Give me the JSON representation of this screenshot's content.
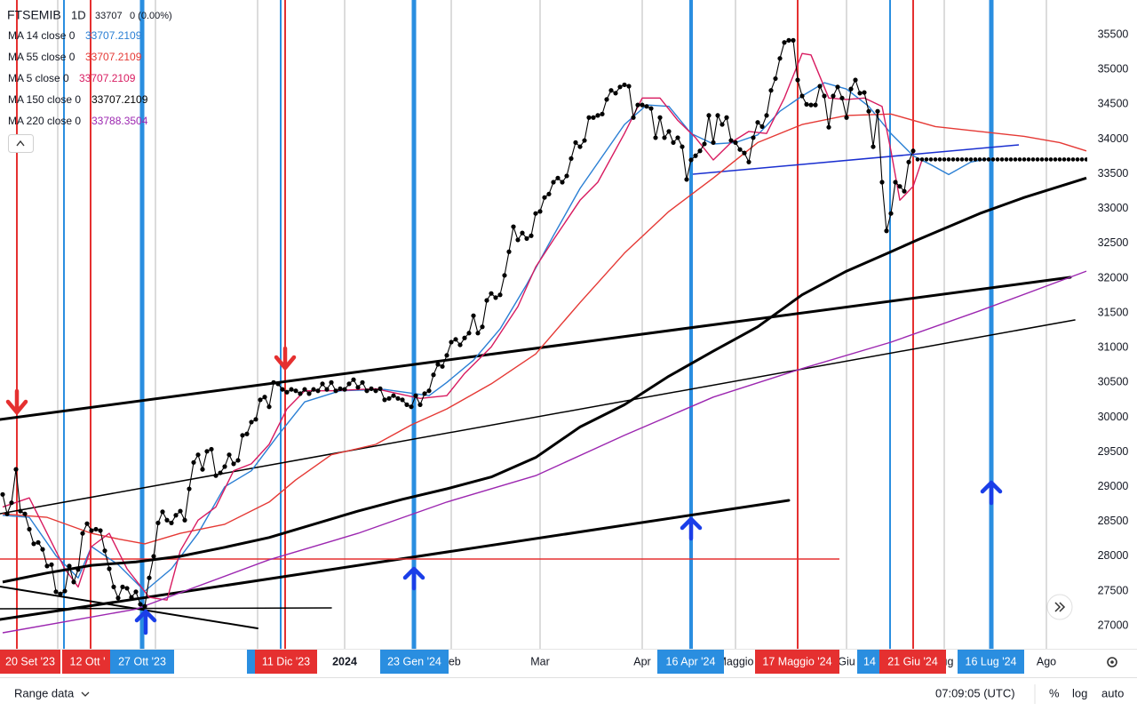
{
  "header": {
    "symbol": "FTSEMIB",
    "interval": "1D",
    "close": 33707,
    "change": "0 (0.00%)"
  },
  "chart_data": {
    "type": "line",
    "xlim": [
      -0.6,
      244.2
    ],
    "xticks": [
      {
        "value": 77,
        "label": "2024"
      },
      {
        "value": 101,
        "label": "Feb"
      },
      {
        "value": 121,
        "label": "Mar"
      },
      {
        "value": 144,
        "label": "Apr"
      },
      {
        "value": 165,
        "label": "Maggio"
      },
      {
        "value": 190,
        "label": "Giu"
      },
      {
        "value": 212,
        "label": "Lug"
      },
      {
        "value": 235,
        "label": "Ago"
      }
    ],
    "ylim": [
      26670,
      36000
    ],
    "yticks": [
      27000,
      27500,
      28000,
      28500,
      29000,
      29500,
      30000,
      30500,
      31000,
      31500,
      32000,
      32500,
      33000,
      33500,
      34000,
      34500,
      35000,
      35500
    ],
    "color": "#000000",
    "values": [
      28890,
      28610,
      28770,
      29250,
      28650,
      28610,
      28390,
      28180,
      28200,
      28100,
      27860,
      27880,
      27490,
      27460,
      27500,
      27860,
      27630,
      27810,
      28330,
      28470,
      28370,
      28390,
      28370,
      28080,
      27820,
      27560,
      27400,
      27560,
      27540,
      27410,
      27490,
      27310,
      27280,
      27690,
      28000,
      28480,
      28640,
      28520,
      28480,
      28590,
      28650,
      28520,
      28970,
      29350,
      29460,
      29250,
      29510,
      29540,
      29160,
      29200,
      29290,
      29460,
      29330,
      29380,
      29740,
      29760,
      29930,
      29970,
      30250,
      30290,
      30150,
      30500,
      30480,
      30400,
      30360,
      30400,
      30380,
      30340,
      30400,
      30340,
      30400,
      30380,
      30480,
      30400,
      30500,
      30380,
      30410,
      30400,
      30480,
      30540,
      30430,
      30500,
      30380,
      30410,
      30380,
      30410,
      30250,
      30270,
      30310,
      30270,
      30250,
      30180,
      30150,
      30310,
      30180,
      30340,
      30380,
      30610,
      30760,
      30730,
      30890,
      31080,
      31120,
      31040,
      31140,
      31210,
      31460,
      31210,
      31300,
      31680,
      31780,
      31720,
      31760,
      32040,
      32380,
      32740,
      32550,
      32650,
      32570,
      32610,
      32930,
      32960,
      33160,
      33210,
      33380,
      33440,
      33380,
      33470,
      33720,
      33950,
      33890,
      33980,
      34310,
      34310,
      34340,
      34360,
      34570,
      34700,
      34660,
      34750,
      34780,
      34760,
      34310,
      34490,
      34490,
      34470,
      34440,
      34020,
      34310,
      34020,
      34110,
      33950,
      34020,
      33890,
      33420,
      33700,
      33760,
      33830,
      33930,
      34340,
      33950,
      34340,
      34210,
      34310,
      33980,
      33950,
      33850,
      33800,
      33670,
      34020,
      34240,
      34180,
      34340,
      34700,
      34870,
      35160,
      35390,
      35420,
      35420,
      34850,
      34620,
      34500,
      34490,
      34490,
      34760,
      34620,
      34170,
      34620,
      34750,
      34590,
      34310,
      34720,
      34850,
      34660,
      34670,
      34400,
      33890,
      34400,
      33380,
      32680,
      32930,
      33380,
      33320,
      33250,
      33670,
      33830
    ],
    "series": [
      {
        "name": "MA 14 close 0",
        "color": "#2a7fd4",
        "legend_value": 33707.2109,
        "x": [
          0,
          6,
          12,
          17,
          20,
          26,
          32,
          38,
          44,
          50,
          56,
          62,
          68,
          76,
          86,
          96,
          100,
          106,
          112,
          118,
          124,
          130,
          140,
          145,
          150,
          155,
          160,
          165,
          170,
          175,
          180,
          185,
          190,
          195,
          200,
          205,
          209,
          213,
          218,
          222
        ],
        "values": [
          28590,
          28560,
          28010,
          27690,
          28140,
          27880,
          27500,
          27820,
          28330,
          29000,
          29230,
          29740,
          30220,
          30380,
          30400,
          30310,
          30500,
          30820,
          31270,
          31910,
          32610,
          33290,
          34210,
          34490,
          34470,
          34080,
          33930,
          33950,
          34060,
          34400,
          34620,
          34810,
          34720,
          34470,
          34080,
          33760,
          33630,
          33490,
          33670,
          33720
        ]
      },
      {
        "name": "MA 55 close 0",
        "color": "#e53935",
        "legend_value": 33707.2109,
        "x": [
          0,
          10,
          20,
          26,
          32,
          40,
          50,
          60,
          66,
          74,
          84,
          92,
          100,
          110,
          120,
          130,
          140,
          150,
          160,
          170,
          180,
          190,
          200,
          210,
          220,
          230,
          238,
          244
        ],
        "values": [
          28610,
          28560,
          28330,
          28250,
          28180,
          28330,
          28460,
          28780,
          29100,
          29460,
          29610,
          29890,
          30120,
          30480,
          30910,
          31650,
          32360,
          32960,
          33440,
          33950,
          34210,
          34340,
          34360,
          34180,
          34110,
          34040,
          33950,
          33830
        ]
      },
      {
        "name": "MA 5 close 0",
        "color": "#d81b60",
        "legend_value": 33707.2109,
        "x": [
          0,
          6,
          10,
          14,
          17,
          20,
          24,
          28,
          33,
          37,
          40,
          44,
          48,
          52,
          56,
          60,
          64,
          68,
          74,
          84,
          94,
          100,
          104,
          110,
          116,
          120,
          124,
          130,
          134,
          140,
          144,
          148,
          152,
          156,
          160,
          164,
          168,
          172,
          176,
          180,
          182,
          186,
          190,
          194,
          198,
          200,
          202,
          205,
          207
        ],
        "values": [
          28710,
          28840,
          28330,
          27820,
          27560,
          28140,
          28330,
          27820,
          27410,
          27370,
          28080,
          28520,
          28710,
          29230,
          29330,
          29610,
          30120,
          30380,
          30380,
          30410,
          30270,
          30310,
          30630,
          31010,
          31590,
          32160,
          32550,
          33120,
          33380,
          34080,
          34590,
          34590,
          34270,
          34020,
          33700,
          33950,
          34110,
          34080,
          34590,
          35230,
          35210,
          34590,
          34570,
          34590,
          34470,
          33830,
          33120,
          33320,
          33700
        ]
      },
      {
        "name": "MA 150 close 0",
        "color": "#000000",
        "legend_value": 33707.2109,
        "x": [
          0,
          10,
          20,
          30,
          40,
          50,
          60,
          70,
          80,
          90,
          100,
          110,
          120,
          130,
          140,
          150,
          160,
          170,
          180,
          190,
          200,
          206,
          220,
          230,
          244
        ],
        "values": [
          27630,
          27760,
          27870,
          27920,
          28000,
          28130,
          28270,
          28460,
          28650,
          28820,
          28970,
          29140,
          29420,
          29860,
          30180,
          30590,
          30950,
          31300,
          31760,
          32100,
          32380,
          32550,
          32930,
          33160,
          33440
        ]
      },
      {
        "name": "MA 220 close 0",
        "color": "#9c27b0",
        "legend_value": 33788.3504,
        "x": [
          0,
          30,
          60,
          80,
          100,
          120,
          140,
          160,
          180,
          200,
          220,
          244
        ],
        "values": [
          26900,
          27240,
          27950,
          28330,
          28780,
          29160,
          29740,
          30290,
          30700,
          31080,
          31530,
          32100
        ]
      }
    ],
    "date_markers": [
      {
        "label": "20 Set '23",
        "color": "#e53030"
      },
      {
        "label": "12 Ott '",
        "color": "#e53030"
      },
      {
        "label": "27 Ott '23",
        "color": "#2a8ee0"
      },
      {
        "label": "11 Dic '23",
        "color": "#e53030"
      },
      {
        "label": "23 Gen '24",
        "color": "#2a8ee0"
      },
      {
        "label": "16 Apr '24",
        "color": "#2a8ee0"
      },
      {
        "label": "17 Maggio '24",
        "color": "#e53030"
      },
      {
        "label": "14",
        "color": "#2a8ee0"
      },
      {
        "label": "21 Giu '24",
        "color": "#e53030"
      },
      {
        "label": "16 Lug '24",
        "color": "#2a8ee0"
      }
    ]
  },
  "toolbar": {
    "range": "Range data",
    "time": "07:09:05 (UTC)",
    "percent": "%",
    "log": "log",
    "auto": "auto"
  }
}
